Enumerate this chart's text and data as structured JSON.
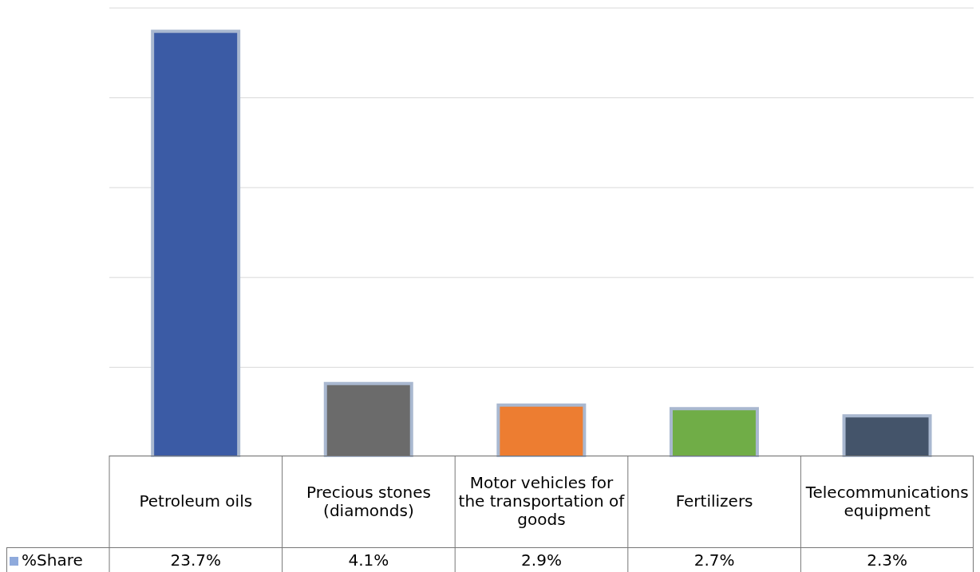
{
  "chart_data": {
    "type": "bar",
    "categories": [
      "Petroleum oils",
      "Precious stones (diamonds)",
      "Motor vehicles for the transportation of goods",
      "Fertilizers",
      "Telecommunications equipment"
    ],
    "series": [
      {
        "name": "%Share",
        "color": "#8faadc",
        "colors": [
          "#3b5ba5",
          "#6b6b6b",
          "#ed7d31",
          "#70ad47",
          "#44546a"
        ],
        "values": [
          23.7,
          4.1,
          2.9,
          2.7,
          2.3
        ],
        "value_labels": [
          "23.7%",
          "4.1%",
          "2.9%",
          "2.7%",
          "2.3%"
        ]
      }
    ],
    "ylim": [
      0,
      25
    ],
    "grid": "y",
    "legend": "bottom",
    "tick_labels": "x"
  }
}
